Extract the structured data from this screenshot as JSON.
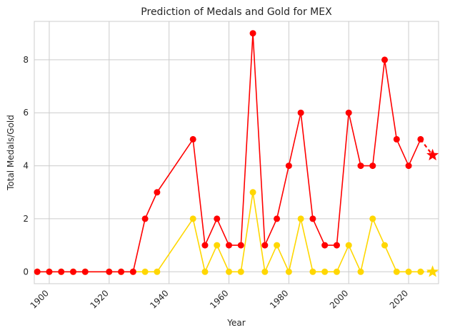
{
  "chart_data": {
    "type": "line",
    "title": "Prediction of Medals and Gold for MEX",
    "xlabel": "Year",
    "ylabel": "Total Medals/Gold",
    "xlim": [
      1895,
      2030
    ],
    "ylim": [
      -0.45,
      9.45
    ],
    "xticks": [
      1900,
      1920,
      1940,
      1960,
      1980,
      2000,
      2020
    ],
    "yticks": [
      0,
      2,
      4,
      6,
      8
    ],
    "xtick_rotation": 45,
    "grid": true,
    "legend": "none",
    "series": [
      {
        "color": "#ff0000",
        "x": [
          1896,
          1900,
          1904,
          1908,
          1912,
          1920,
          1924,
          1928,
          1932,
          1936,
          1948,
          1952,
          1956,
          1960,
          1964,
          1968,
          1972,
          1976,
          1980,
          1984,
          1988,
          1992,
          1996,
          2000,
          2004,
          2008,
          2012,
          2016,
          2020,
          2024
        ],
        "y": [
          0,
          0,
          0,
          0,
          0,
          0,
          0,
          0,
          2,
          3,
          5,
          1,
          2,
          1,
          1,
          9,
          1,
          2,
          4,
          6,
          2,
          1,
          1,
          6,
          4,
          4,
          8,
          5,
          4,
          5
        ]
      },
      {
        "color": "#ffd700",
        "x": [
          1896,
          1900,
          1904,
          1908,
          1912,
          1920,
          1924,
          1928,
          1932,
          1936,
          1948,
          1952,
          1956,
          1960,
          1964,
          1968,
          1972,
          1976,
          1980,
          1984,
          1988,
          1992,
          1996,
          2000,
          2004,
          2008,
          2012,
          2016,
          2020,
          2024
        ],
        "y": [
          0,
          0,
          0,
          0,
          0,
          0,
          0,
          0,
          0,
          0,
          2,
          0,
          1,
          0,
          0,
          3,
          0,
          1,
          0,
          2,
          0,
          0,
          0,
          1,
          0,
          2,
          1,
          0,
          0,
          0
        ]
      }
    ],
    "predictions": [
      {
        "color": "#ff0000",
        "from": [
          2024,
          5
        ],
        "to": [
          2028,
          4.4
        ],
        "marker": "star",
        "line": "dashed"
      },
      {
        "color": "#ffd700",
        "from": [
          2024,
          0
        ],
        "to": [
          2028,
          0
        ],
        "marker": "star",
        "line": "dashed"
      }
    ]
  }
}
